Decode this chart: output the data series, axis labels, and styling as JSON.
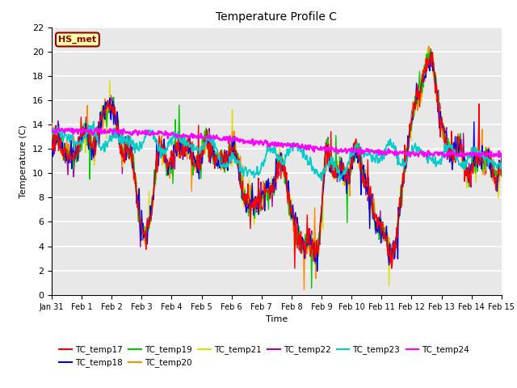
{
  "title": "Temperature Profile C",
  "xlabel": "Time",
  "ylabel": "Temperature (C)",
  "ylim": [
    0,
    22
  ],
  "yticks": [
    0,
    2,
    4,
    6,
    8,
    10,
    12,
    14,
    16,
    18,
    20,
    22
  ],
  "annotation_label": "HS_met",
  "annotation_color": "#8B0000",
  "annotation_bg": "#FFFFAA",
  "background_color": "#E8E8E8",
  "series_colors": {
    "TC_temp17": "#FF0000",
    "TC_temp18": "#0000EE",
    "TC_temp19": "#00CC00",
    "TC_temp20": "#FF8C00",
    "TC_temp21": "#DDDD00",
    "TC_temp22": "#AA00AA",
    "TC_temp23": "#00CCCC",
    "TC_temp24": "#FF00FF"
  },
  "xtick_labels": [
    "Jan 31",
    "Feb 1",
    "Feb 2",
    "Feb 3",
    "Feb 4",
    "Feb 5",
    "Feb 6",
    "Feb 7",
    "Feb 8",
    "Feb 9",
    "Feb 10",
    "Feb 11",
    "Feb 12",
    "Feb 13",
    "Feb 14",
    "Feb 15"
  ],
  "n_points": 721
}
